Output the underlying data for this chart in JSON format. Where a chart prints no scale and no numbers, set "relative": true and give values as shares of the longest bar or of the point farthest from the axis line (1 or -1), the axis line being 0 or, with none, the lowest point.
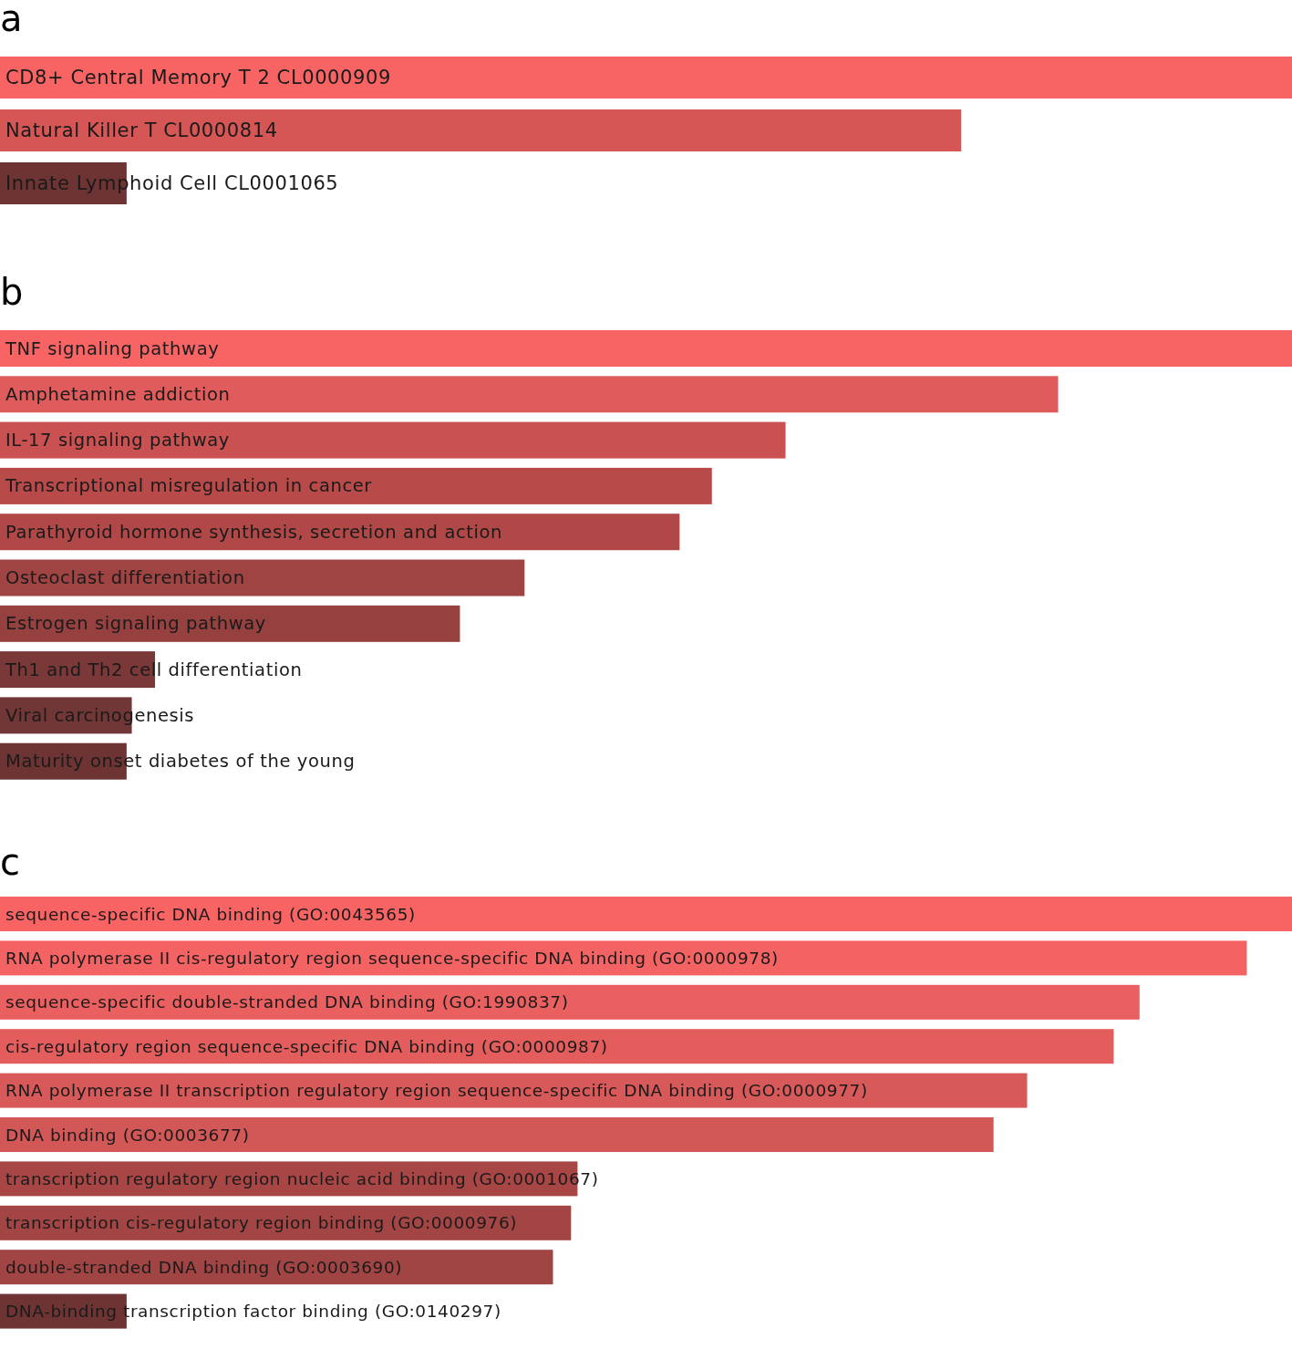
{
  "chart_data": [
    {
      "type": "bar",
      "title": "a",
      "orientation": "horizontal",
      "relative": true,
      "categories": [
        "CD8+ Central Memory T 2 CL0000909",
        "Natural Killer T CL0000814",
        "Innate Lymphoid Cell CL0001065"
      ],
      "values": [
        1,
        0.744,
        0.098
      ],
      "colors": [
        "#f86464",
        "#d65656",
        "#6e3434"
      ]
    },
    {
      "type": "bar",
      "title": "b",
      "orientation": "horizontal",
      "relative": true,
      "categories": [
        "TNF signaling pathway",
        "Amphetamine addiction",
        "IL-17 signaling pathway",
        "Transcriptional misregulation in cancer",
        "Parathyroid hormone synthesis, secretion and action",
        "Osteoclast differentiation",
        "Estrogen signaling pathway",
        "Th1 and Th2 cell differentiation",
        "Viral carcinogenesis",
        "Maturity onset diabetes of the young"
      ],
      "values": [
        1,
        0.819,
        0.608,
        0.551,
        0.526,
        0.406,
        0.356,
        0.12,
        0.102,
        0.098
      ],
      "colors": [
        "#f86464",
        "#e05c5c",
        "#c95151",
        "#b84a4a",
        "#b04848",
        "#a04343",
        "#964040",
        "#7a3838",
        "#713636",
        "#6e3434"
      ]
    },
    {
      "type": "bar",
      "title": "c",
      "orientation": "horizontal",
      "relative": true,
      "categories": [
        "sequence-specific DNA binding (GO:0043565)",
        "RNA polymerase II cis-regulatory region sequence-specific DNA binding (GO:0000978)",
        "sequence-specific double-stranded DNA binding (GO:1990837)",
        "cis-regulatory region sequence-specific DNA binding (GO:0000987)",
        "RNA polymerase II transcription regulatory region sequence-specific DNA binding (GO:0000977)",
        "DNA binding (GO:0003677)",
        "transcription regulatory region nucleic acid binding (GO:0001067)",
        "transcription cis-regulatory region binding (GO:0000976)",
        "double-stranded DNA binding (GO:0003690)",
        "DNA-binding transcription factor binding (GO:0140297)"
      ],
      "values": [
        1,
        0.965,
        0.882,
        0.862,
        0.795,
        0.769,
        0.447,
        0.442,
        0.428,
        0.098
      ],
      "colors": [
        "#f86464",
        "#f46363",
        "#ea5f5f",
        "#e45d5d",
        "#d85959",
        "#d25757",
        "#a84646",
        "#a44545",
        "#a04444",
        "#6e3434"
      ]
    }
  ]
}
